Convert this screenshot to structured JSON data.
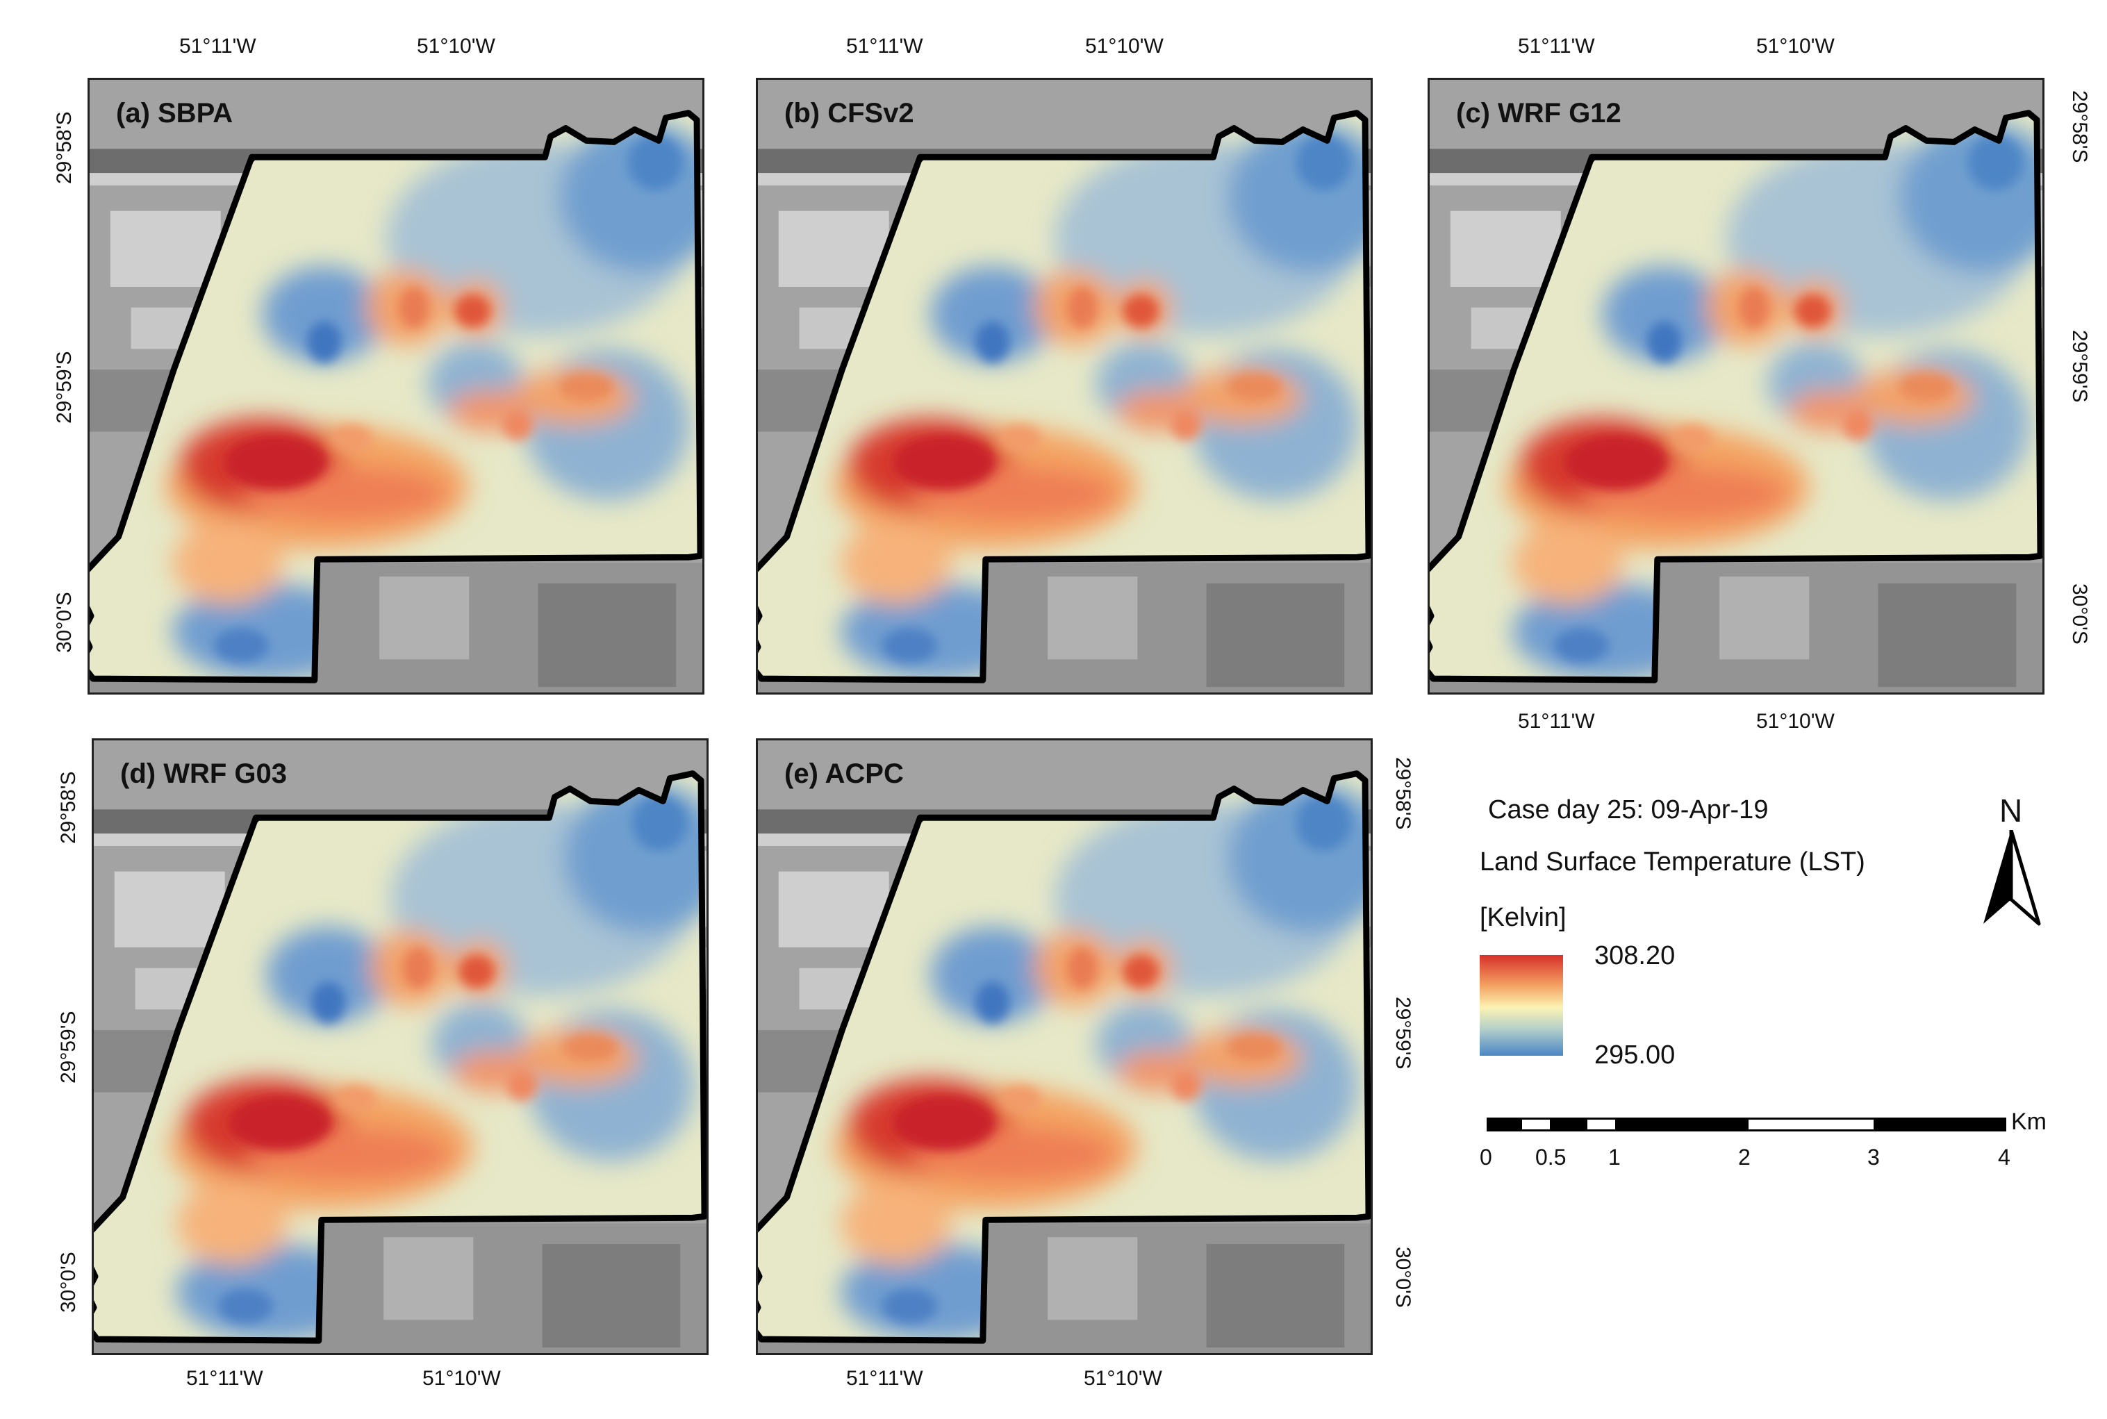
{
  "panels": [
    {
      "label": "(a) SBPA"
    },
    {
      "label": "(b) CFSv2"
    },
    {
      "label": "(c) WRF G12"
    },
    {
      "label": "(d) WRF G03"
    },
    {
      "label": "(e) ACPC"
    }
  ],
  "axis_ticks": {
    "lon": [
      "51°11'W",
      "51°10'W"
    ],
    "lat": [
      "29°58'S",
      "29°59'S",
      "30°0'S"
    ]
  },
  "legend": {
    "case_day": "Case day 25: 09-Apr-19",
    "variable": "Land Surface Temperature (LST)",
    "unit": "[Kelvin]",
    "max": "308.20",
    "min": "295.00",
    "colors": {
      "high": "#d7302a",
      "mid": "#fbf2b2",
      "low": "#4a86c6"
    }
  },
  "north_arrow": {
    "label": "N",
    "icon": "north-arrow-icon"
  },
  "scale_bar": {
    "unit": "Km",
    "labels": [
      "0",
      "0.5",
      "1",
      "2",
      "3",
      "4"
    ]
  }
}
